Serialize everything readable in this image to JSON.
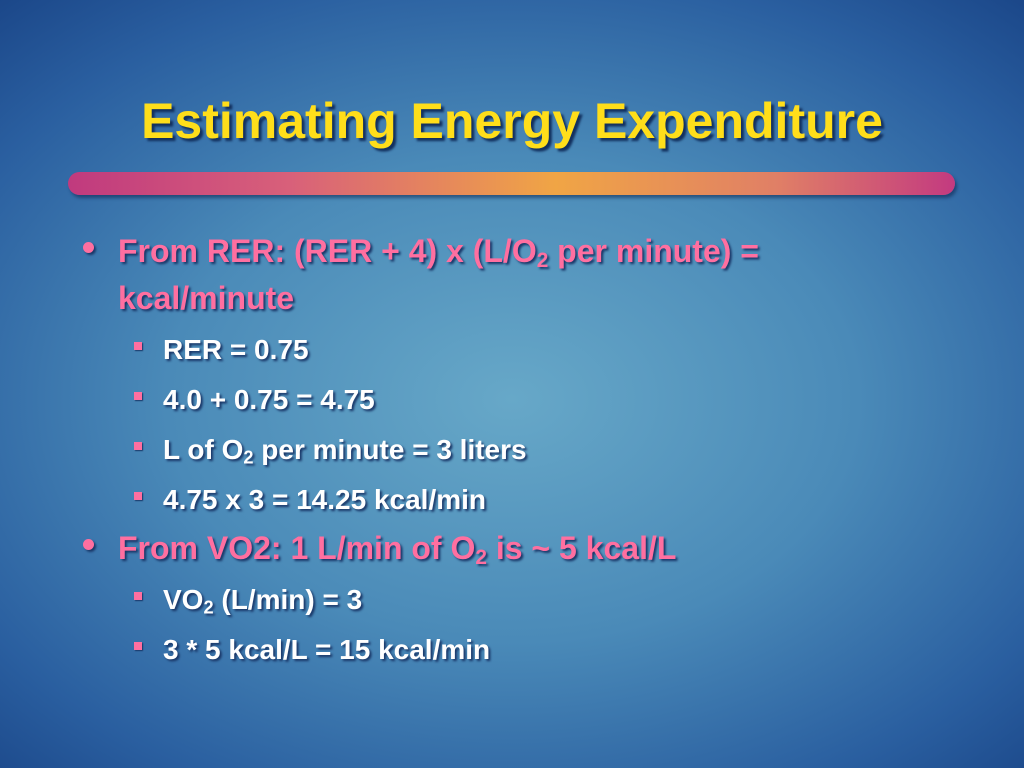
{
  "title": "Estimating Energy Expenditure",
  "bullets": [
    {
      "runs": [
        {
          "text": "From RER: (RER + 4) x (L/O"
        },
        {
          "sub": "2"
        },
        {
          "text": " per minute) = kcal/minute"
        }
      ],
      "items": [
        {
          "runs": [
            {
              "text": "RER = 0.75"
            }
          ]
        },
        {
          "runs": [
            {
              "text": "4.0 + 0.75 = 4.75"
            }
          ]
        },
        {
          "runs": [
            {
              "text": "L of O"
            },
            {
              "sub": "2"
            },
            {
              "text": " per minute = 3 liters"
            }
          ]
        },
        {
          "runs": [
            {
              "text": "4.75 x 3 = 14.25 kcal/min"
            }
          ]
        }
      ]
    },
    {
      "runs": [
        {
          "text": "From VO2: 1 L/min of O"
        },
        {
          "sub": "2"
        },
        {
          "text": " is ~ 5 kcal/L"
        }
      ],
      "items": [
        {
          "runs": [
            {
              "text": "VO"
            },
            {
              "sub": "2"
            },
            {
              "text": " (L/min) = 3"
            }
          ]
        },
        {
          "runs": [
            {
              "text": "3 * 5 kcal/L = 15 kcal/min"
            }
          ]
        }
      ]
    }
  ]
}
